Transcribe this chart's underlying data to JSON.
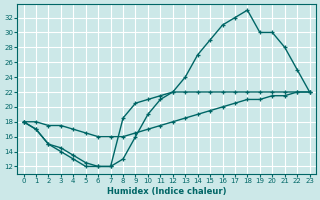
{
  "xlabel": "Humidex (Indice chaleur)",
  "bg_color": "#cce8e8",
  "grid_color": "#ffffff",
  "line_color": "#006666",
  "xlim": [
    -0.5,
    23.5
  ],
  "ylim": [
    11.0,
    33.8
  ],
  "xticks": [
    0,
    1,
    2,
    3,
    4,
    5,
    6,
    7,
    8,
    9,
    10,
    11,
    12,
    13,
    14,
    15,
    16,
    17,
    18,
    19,
    20,
    21,
    22,
    23
  ],
  "yticks": [
    12,
    14,
    16,
    18,
    20,
    22,
    24,
    26,
    28,
    30,
    32
  ],
  "curve1_x": [
    0,
    1,
    2,
    3,
    4,
    5,
    6,
    7,
    8,
    9,
    10,
    11,
    12,
    13,
    14,
    15,
    16,
    17,
    18,
    19,
    20,
    21,
    22,
    23
  ],
  "curve1_y": [
    18,
    17,
    15,
    14,
    13,
    12,
    12,
    12,
    13,
    16,
    19,
    21,
    22,
    24,
    27,
    29,
    31,
    32,
    33,
    30,
    30,
    28,
    25,
    22
  ],
  "curve2_x": [
    0,
    1,
    2,
    3,
    4,
    5,
    6,
    7,
    8,
    9,
    10,
    11,
    12,
    13,
    14,
    15,
    16,
    17,
    18,
    19,
    20,
    21,
    22,
    23
  ],
  "curve2_y": [
    18,
    17,
    15,
    14.5,
    13.5,
    12.5,
    12,
    12,
    18.5,
    20.5,
    21,
    21.5,
    22,
    22,
    22,
    22,
    22,
    22,
    22,
    22,
    22,
    22,
    22,
    22
  ],
  "curve3_x": [
    0,
    1,
    2,
    3,
    4,
    5,
    6,
    7,
    8,
    9,
    10,
    11,
    12,
    13,
    14,
    15,
    16,
    17,
    18,
    19,
    20,
    21,
    22,
    23
  ],
  "curve3_y": [
    18,
    18,
    17.5,
    17.5,
    17,
    16.5,
    16,
    16,
    16,
    16.5,
    17,
    17.5,
    18,
    18.5,
    19,
    19.5,
    20,
    20.5,
    21,
    21,
    21.5,
    21.5,
    22,
    22
  ]
}
